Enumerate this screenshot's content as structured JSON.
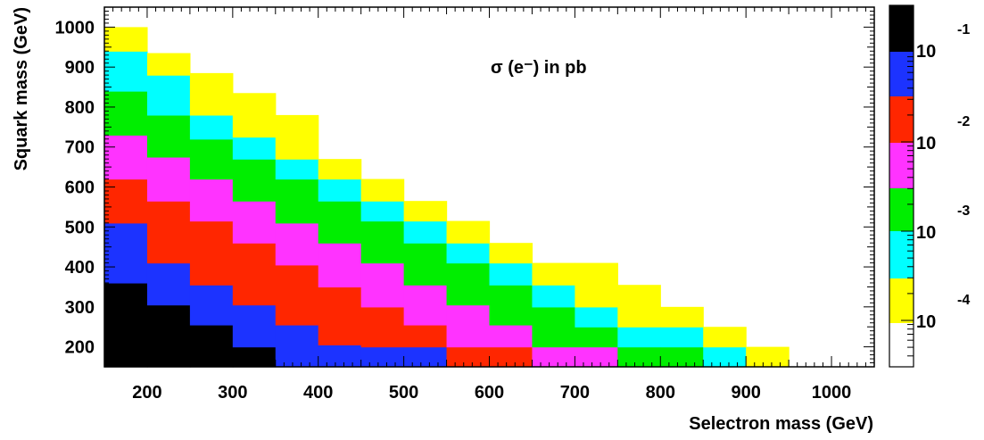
{
  "chart_data": {
    "type": "heatmap",
    "title": "σ (e⁻) in pb",
    "xlabel": "Selectron mass (GeV)",
    "ylabel": "Squark mass (GeV)",
    "xlim": [
      150,
      1050
    ],
    "ylim": [
      150,
      1050
    ],
    "x_ticks": [
      200,
      300,
      400,
      500,
      600,
      700,
      800,
      900,
      1000
    ],
    "y_ticks": [
      200,
      300,
      400,
      500,
      600,
      700,
      800,
      900,
      1000
    ],
    "cell_size_gev": [
      50,
      50
    ],
    "color_scale": "log",
    "colorbar_labels": [
      {
        "base": "10",
        "exponent": "-1",
        "value": 0.1
      },
      {
        "base": "10",
        "exponent": "-2",
        "value": 0.01
      },
      {
        "base": "10",
        "exponent": "-3",
        "value": 0.001
      },
      {
        "base": "10",
        "exponent": "-4",
        "value": 0.0001
      }
    ],
    "colorbar_colors": [
      "#000000",
      "#1c33ff",
      "#ff2600",
      "#ff33ff",
      "#00ee00",
      "#00ffff",
      "#ffff00",
      "#ffffff"
    ],
    "columns": [
      {
        "x": 175,
        "bands": [
          [
            150,
            360,
            0
          ],
          [
            360,
            510,
            1
          ],
          [
            510,
            620,
            2
          ],
          [
            620,
            730,
            3
          ],
          [
            730,
            840,
            4
          ],
          [
            840,
            940,
            5
          ],
          [
            940,
            1000,
            6
          ]
        ]
      },
      {
        "x": 225,
        "bands": [
          [
            150,
            305,
            0
          ],
          [
            305,
            410,
            1
          ],
          [
            410,
            565,
            2
          ],
          [
            565,
            675,
            3
          ],
          [
            675,
            780,
            4
          ],
          [
            780,
            880,
            5
          ],
          [
            880,
            935,
            6
          ]
        ]
      },
      {
        "x": 275,
        "bands": [
          [
            150,
            255,
            0
          ],
          [
            255,
            355,
            1
          ],
          [
            355,
            515,
            2
          ],
          [
            515,
            620,
            3
          ],
          [
            620,
            720,
            4
          ],
          [
            720,
            780,
            5
          ],
          [
            780,
            885,
            6
          ]
        ]
      },
      {
        "x": 325,
        "bands": [
          [
            150,
            200,
            0
          ],
          [
            200,
            305,
            1
          ],
          [
            305,
            460,
            2
          ],
          [
            460,
            565,
            3
          ],
          [
            565,
            670,
            4
          ],
          [
            670,
            725,
            5
          ],
          [
            725,
            835,
            6
          ]
        ]
      },
      {
        "x": 375,
        "bands": [
          [
            150,
            255,
            1
          ],
          [
            255,
            405,
            2
          ],
          [
            405,
            510,
            3
          ],
          [
            510,
            620,
            4
          ],
          [
            620,
            670,
            5
          ],
          [
            670,
            780,
            6
          ]
        ]
      },
      {
        "x": 425,
        "bands": [
          [
            150,
            205,
            1
          ],
          [
            205,
            350,
            2
          ],
          [
            350,
            460,
            3
          ],
          [
            460,
            565,
            4
          ],
          [
            565,
            620,
            5
          ],
          [
            620,
            670,
            6
          ]
        ]
      },
      {
        "x": 475,
        "bands": [
          [
            150,
            200,
            1
          ],
          [
            200,
            300,
            2
          ],
          [
            300,
            410,
            3
          ],
          [
            410,
            515,
            4
          ],
          [
            515,
            565,
            5
          ],
          [
            565,
            620,
            6
          ]
        ]
      },
      {
        "x": 525,
        "bands": [
          [
            150,
            200,
            1
          ],
          [
            200,
            255,
            2
          ],
          [
            255,
            355,
            3
          ],
          [
            355,
            460,
            4
          ],
          [
            460,
            515,
            5
          ],
          [
            515,
            565,
            6
          ]
        ]
      },
      {
        "x": 575,
        "bands": [
          [
            150,
            200,
            2
          ],
          [
            200,
            305,
            3
          ],
          [
            305,
            410,
            4
          ],
          [
            410,
            460,
            5
          ],
          [
            460,
            515,
            6
          ]
        ]
      },
      {
        "x": 625,
        "bands": [
          [
            150,
            200,
            2
          ],
          [
            200,
            255,
            3
          ],
          [
            255,
            355,
            4
          ],
          [
            355,
            410,
            5
          ],
          [
            410,
            460,
            6
          ]
        ]
      },
      {
        "x": 675,
        "bands": [
          [
            150,
            200,
            3
          ],
          [
            200,
            300,
            4
          ],
          [
            300,
            355,
            5
          ],
          [
            355,
            410,
            6
          ]
        ]
      },
      {
        "x": 725,
        "bands": [
          [
            150,
            200,
            3
          ],
          [
            200,
            250,
            4
          ],
          [
            250,
            300,
            5
          ],
          [
            300,
            410,
            6
          ]
        ]
      },
      {
        "x": 775,
        "bands": [
          [
            150,
            200,
            4
          ],
          [
            200,
            250,
            5
          ],
          [
            250,
            355,
            6
          ]
        ]
      },
      {
        "x": 825,
        "bands": [
          [
            150,
            200,
            4
          ],
          [
            200,
            250,
            5
          ],
          [
            250,
            300,
            6
          ]
        ]
      },
      {
        "x": 875,
        "bands": [
          [
            150,
            200,
            5
          ],
          [
            200,
            250,
            6
          ]
        ]
      },
      {
        "x": 925,
        "bands": [
          [
            150,
            200,
            6
          ]
        ]
      }
    ]
  }
}
